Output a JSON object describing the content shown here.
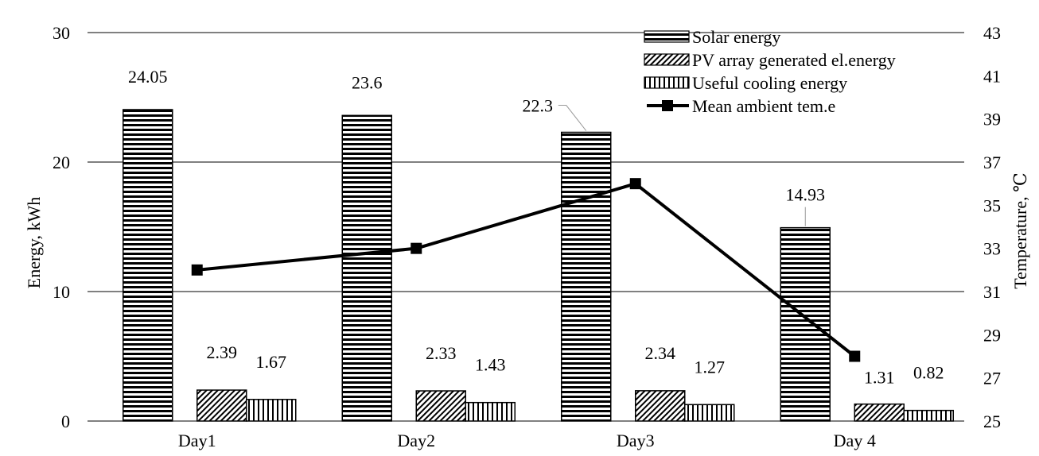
{
  "chart_data": {
    "type": "bar",
    "categories": [
      "Day1",
      "Day2",
      "Day3",
      "Day 4"
    ],
    "series": [
      {
        "name": "Solar energy",
        "axis": "left",
        "pattern": "horizontal-stripes",
        "values": [
          24.05,
          23.6,
          22.3,
          14.93
        ],
        "labels": [
          "24.05",
          "23.6",
          "22.3",
          "14.93"
        ]
      },
      {
        "name": "PV array generated el.energy",
        "axis": "left",
        "pattern": "diagonal-hatch",
        "values": [
          2.39,
          2.33,
          2.34,
          1.31
        ],
        "labels": [
          "2.39",
          "2.33",
          "2.34",
          "1.31"
        ]
      },
      {
        "name": "Useful cooling energy",
        "axis": "left",
        "pattern": "vertical-stripes",
        "values": [
          1.67,
          1.43,
          1.27,
          0.82
        ],
        "labels": [
          "1.67",
          "1.43",
          "1.27",
          "0.82"
        ]
      },
      {
        "name": "Mean ambient tem.e",
        "axis": "right",
        "type": "line",
        "marker": "square",
        "values": [
          32,
          33,
          36,
          28
        ]
      }
    ],
    "ylabel": "Energy, kWh",
    "ylabel_right": "Temperature, ℃",
    "ylim": [
      0,
      30
    ],
    "ylim_right": [
      25,
      43
    ],
    "yticks": [
      0,
      10,
      20,
      30
    ],
    "yticks_right": [
      25,
      27,
      29,
      31,
      33,
      35,
      37,
      39,
      41,
      43
    ],
    "grid": true,
    "legend_position": "top-right",
    "colors": {
      "line": "#000000",
      "fill": "#ffffff",
      "grid": "#000000"
    }
  }
}
